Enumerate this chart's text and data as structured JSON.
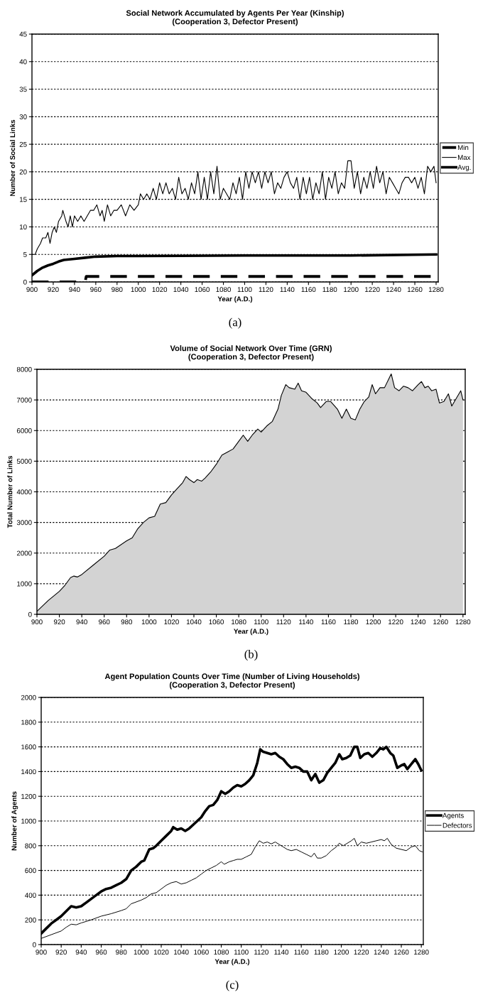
{
  "chart_data": [
    {
      "type": "line",
      "title": "Social Network Accumulated by Agents Per Year (Kinship)",
      "subtitle": "(Cooperation 3, Defector Present)",
      "xlabel": "Year (A.D.)",
      "ylabel": "Number of Social Links",
      "xlim": [
        900,
        1282
      ],
      "xticks": [
        900,
        920,
        940,
        960,
        980,
        1000,
        1020,
        1040,
        1060,
        1080,
        1100,
        1120,
        1140,
        1160,
        1180,
        1200,
        1220,
        1240,
        1260,
        1280
      ],
      "ylim": [
        0,
        45
      ],
      "yticks": [
        0,
        5,
        10,
        15,
        20,
        25,
        30,
        35,
        40,
        45
      ],
      "grid": "y",
      "legend": "right",
      "marker": "none",
      "annotations": [
        "(a)"
      ],
      "series": [
        {
          "name": "Min",
          "color": "#000000",
          "line_style": "dashed",
          "x": [
            900,
            950,
            951,
            1280
          ],
          "values": [
            0,
            0,
            1,
            1
          ]
        },
        {
          "name": "Max",
          "color": "#000000",
          "line_style": "solid",
          "x": [
            900,
            903,
            905,
            908,
            910,
            913,
            915,
            917,
            919,
            921,
            923,
            925,
            928,
            929,
            932,
            934,
            936,
            938,
            940,
            943,
            946,
            949,
            952,
            955,
            958,
            961,
            964,
            966,
            968,
            971,
            974,
            977,
            980,
            984,
            988,
            992,
            996,
            1000,
            1002,
            1005,
            1008,
            1011,
            1014,
            1017,
            1020,
            1023,
            1026,
            1029,
            1032,
            1035,
            1038,
            1041,
            1044,
            1047,
            1050,
            1053,
            1056,
            1059,
            1062,
            1065,
            1068,
            1071,
            1074,
            1077,
            1080,
            1083,
            1086,
            1089,
            1092,
            1095,
            1098,
            1101,
            1104,
            1107,
            1110,
            1113,
            1116,
            1119,
            1122,
            1125,
            1128,
            1131,
            1134,
            1137,
            1140,
            1143,
            1146,
            1149,
            1152,
            1155,
            1158,
            1161,
            1164,
            1167,
            1170,
            1173,
            1176,
            1179,
            1182,
            1185,
            1188,
            1191,
            1194,
            1197,
            1200,
            1203,
            1206,
            1209,
            1212,
            1215,
            1218,
            1221,
            1224,
            1227,
            1230,
            1233,
            1236,
            1239,
            1242,
            1245,
            1248,
            1251,
            1254,
            1257,
            1260,
            1263,
            1266,
            1269,
            1272,
            1275,
            1278,
            1280
          ],
          "values": [
            5,
            5,
            6,
            7,
            8,
            8,
            9,
            7,
            9,
            10,
            9,
            11,
            12,
            13,
            11,
            10,
            12,
            10,
            12,
            11,
            12,
            11,
            12,
            13,
            13,
            14,
            12,
            13,
            11,
            14,
            12,
            13,
            13,
            14,
            12,
            14,
            13,
            14,
            16,
            15,
            16,
            15,
            17,
            15,
            18,
            16,
            18,
            16,
            17,
            15,
            19,
            16,
            17,
            15,
            18,
            16,
            20,
            15,
            19,
            15,
            20,
            16,
            21,
            15,
            17,
            16,
            15,
            18,
            16,
            19,
            15,
            20,
            17,
            20,
            18,
            20,
            17,
            20,
            18,
            20,
            16,
            18,
            17,
            19,
            20,
            18,
            17,
            19,
            15,
            19,
            16,
            19,
            15,
            18,
            16,
            20,
            15,
            19,
            17,
            20,
            16,
            18,
            17,
            22,
            22,
            17,
            20,
            16,
            19,
            17,
            20,
            17,
            21,
            18,
            20,
            16,
            19,
            18,
            17,
            16,
            18,
            19,
            19,
            18,
            19,
            17,
            19,
            16,
            21,
            20,
            21,
            18
          ]
        },
        {
          "name": "Avg.",
          "color": "#000000",
          "line_style": "solid",
          "x": [
            900,
            905,
            910,
            915,
            920,
            925,
            930,
            940,
            950,
            960,
            980,
            1000,
            1100,
            1200,
            1280
          ],
          "values": [
            1.2,
            2,
            2.6,
            3,
            3.3,
            3.7,
            4,
            4.2,
            4.4,
            4.6,
            4.7,
            4.7,
            4.8,
            4.8,
            5
          ]
        }
      ]
    },
    {
      "type": "area",
      "title": "Volume of Social Network Over Time (GRN)",
      "subtitle": "(Cooperation 3, Defector Present)",
      "xlabel": "Year (A.D.)",
      "ylabel": "Total Number of Links",
      "xlim": [
        900,
        1282
      ],
      "xticks": [
        900,
        920,
        940,
        960,
        980,
        1000,
        1020,
        1040,
        1060,
        1080,
        1100,
        1120,
        1140,
        1160,
        1180,
        1200,
        1220,
        1240,
        1260,
        1280
      ],
      "ylim": [
        0,
        8000
      ],
      "yticks": [
        0,
        1000,
        2000,
        3000,
        4000,
        5000,
        6000,
        7000,
        8000
      ],
      "grid": "y",
      "annotations": [
        "(b)"
      ],
      "series": [
        {
          "color": "#d3d3d3",
          "x": [
            900,
            910,
            920,
            925,
            930,
            933,
            936,
            940,
            950,
            960,
            965,
            970,
            980,
            985,
            990,
            995,
            1000,
            1005,
            1010,
            1015,
            1020,
            1025,
            1030,
            1033,
            1036,
            1040,
            1043,
            1047,
            1050,
            1055,
            1060,
            1065,
            1070,
            1075,
            1080,
            1084,
            1088,
            1092,
            1097,
            1100,
            1105,
            1110,
            1115,
            1118,
            1122,
            1125,
            1130,
            1133,
            1136,
            1140,
            1145,
            1150,
            1153,
            1158,
            1162,
            1168,
            1172,
            1176,
            1180,
            1184,
            1188,
            1192,
            1196,
            1199,
            1202,
            1206,
            1210,
            1214,
            1216,
            1219,
            1223,
            1227,
            1231,
            1235,
            1240,
            1243,
            1246,
            1249,
            1252,
            1256,
            1259,
            1263,
            1267,
            1270,
            1274,
            1278,
            1280
          ],
          "values": [
            100,
            450,
            750,
            950,
            1200,
            1250,
            1220,
            1300,
            1600,
            1900,
            2100,
            2150,
            2400,
            2500,
            2800,
            3000,
            3150,
            3200,
            3600,
            3650,
            3900,
            4100,
            4300,
            4500,
            4400,
            4300,
            4400,
            4350,
            4450,
            4650,
            4900,
            5200,
            5300,
            5400,
            5650,
            5850,
            5650,
            5850,
            6050,
            5950,
            6150,
            6300,
            6700,
            7150,
            7500,
            7400,
            7350,
            7550,
            7300,
            7250,
            7050,
            6900,
            6750,
            6950,
            6950,
            6700,
            6400,
            6700,
            6400,
            6350,
            6700,
            6950,
            7100,
            7500,
            7200,
            7400,
            7400,
            7700,
            7850,
            7400,
            7300,
            7450,
            7400,
            7300,
            7500,
            7600,
            7400,
            7450,
            7300,
            7350,
            6900,
            6950,
            7200,
            6800,
            7050,
            7300,
            7000
          ]
        }
      ]
    },
    {
      "type": "line",
      "title": "Agent Population Counts Over Time (Number of Living Households)",
      "subtitle": "(Cooperation 3, Defector Present)",
      "xlabel": "Year (A.D.)",
      "ylabel": "Number of Agents",
      "xlim": [
        900,
        1282
      ],
      "xticks": [
        900,
        920,
        940,
        960,
        980,
        1000,
        1020,
        1040,
        1060,
        1080,
        1100,
        1120,
        1140,
        1160,
        1180,
        1200,
        1220,
        1240,
        1260,
        1280
      ],
      "ylim": [
        0,
        2000
      ],
      "yticks": [
        0,
        200,
        400,
        600,
        800,
        1000,
        1200,
        1400,
        1600,
        1800,
        2000
      ],
      "grid": "y",
      "legend": "right",
      "marker": "none",
      "annotations": [
        "(c)"
      ],
      "series": [
        {
          "name": "Agents",
          "color": "#000000",
          "line_style": "solid",
          "x": [
            900,
            905,
            910,
            915,
            920,
            925,
            930,
            935,
            940,
            945,
            950,
            955,
            960,
            965,
            970,
            975,
            980,
            985,
            990,
            995,
            1000,
            1003,
            1008,
            1012,
            1015,
            1020,
            1025,
            1030,
            1032,
            1036,
            1040,
            1044,
            1048,
            1052,
            1056,
            1060,
            1064,
            1068,
            1072,
            1076,
            1080,
            1084,
            1088,
            1092,
            1096,
            1100,
            1104,
            1108,
            1112,
            1116,
            1119,
            1122,
            1126,
            1130,
            1134,
            1138,
            1142,
            1146,
            1150,
            1154,
            1158,
            1162,
            1166,
            1170,
            1174,
            1178,
            1182,
            1186,
            1190,
            1194,
            1198,
            1201,
            1205,
            1209,
            1213,
            1216,
            1219,
            1223,
            1227,
            1231,
            1235,
            1239,
            1242,
            1245,
            1249,
            1252,
            1256,
            1260,
            1263,
            1266,
            1270,
            1274,
            1277,
            1280
          ],
          "values": [
            90,
            130,
            170,
            200,
            230,
            270,
            310,
            300,
            310,
            340,
            370,
            400,
            430,
            450,
            460,
            480,
            500,
            530,
            600,
            630,
            670,
            680,
            770,
            780,
            800,
            840,
            880,
            920,
            950,
            930,
            940,
            920,
            940,
            970,
            1000,
            1030,
            1080,
            1120,
            1130,
            1170,
            1240,
            1220,
            1240,
            1270,
            1290,
            1280,
            1300,
            1330,
            1370,
            1470,
            1580,
            1560,
            1550,
            1540,
            1550,
            1520,
            1500,
            1460,
            1430,
            1440,
            1430,
            1400,
            1400,
            1330,
            1380,
            1310,
            1330,
            1390,
            1430,
            1470,
            1540,
            1500,
            1510,
            1530,
            1600,
            1600,
            1510,
            1540,
            1550,
            1520,
            1550,
            1590,
            1580,
            1600,
            1550,
            1530,
            1430,
            1450,
            1460,
            1420,
            1460,
            1500,
            1460,
            1410
          ]
        },
        {
          "name": "Defectors",
          "color": "#000000",
          "line_style": "solid",
          "x": [
            900,
            910,
            920,
            925,
            930,
            935,
            940,
            950,
            960,
            970,
            980,
            985,
            990,
            1000,
            1005,
            1010,
            1015,
            1020,
            1025,
            1030,
            1035,
            1040,
            1045,
            1050,
            1055,
            1060,
            1065,
            1070,
            1075,
            1080,
            1083,
            1088,
            1092,
            1096,
            1100,
            1105,
            1110,
            1114,
            1118,
            1122,
            1126,
            1130,
            1134,
            1138,
            1142,
            1146,
            1150,
            1155,
            1160,
            1165,
            1170,
            1173,
            1176,
            1180,
            1185,
            1190,
            1195,
            1198,
            1202,
            1206,
            1210,
            1213,
            1216,
            1220,
            1225,
            1230,
            1235,
            1240,
            1243,
            1246,
            1250,
            1255,
            1260,
            1265,
            1270,
            1274,
            1278,
            1281
          ],
          "values": [
            50,
            80,
            110,
            140,
            165,
            160,
            175,
            200,
            230,
            250,
            275,
            290,
            330,
            360,
            380,
            410,
            420,
            450,
            480,
            500,
            510,
            490,
            500,
            520,
            540,
            570,
            600,
            620,
            640,
            670,
            650,
            670,
            680,
            690,
            690,
            710,
            730,
            790,
            840,
            820,
            830,
            815,
            830,
            810,
            790,
            770,
            760,
            770,
            750,
            730,
            710,
            740,
            700,
            700,
            720,
            760,
            790,
            820,
            800,
            820,
            840,
            860,
            800,
            830,
            820,
            830,
            840,
            850,
            840,
            860,
            810,
            780,
            770,
            760,
            790,
            800,
            760,
            750
          ]
        }
      ]
    }
  ]
}
